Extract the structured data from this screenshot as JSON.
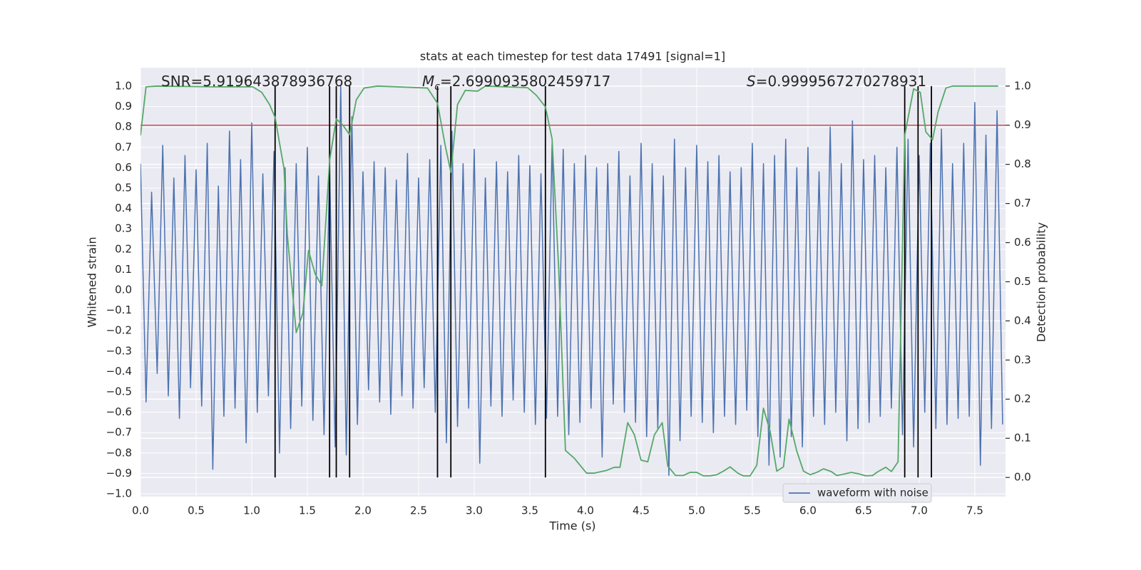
{
  "chart_data": {
    "type": "line",
    "title": "stats at each timestep for test data 17491 [signal=1]",
    "xlabel": "Time (s)",
    "ylabel": "Whitened strain",
    "y2label": "Detection probability",
    "xlim": [
      0,
      7.776
    ],
    "ylim": [
      -1.014,
      1.091
    ],
    "y2lim": [
      -0.049,
      1.047
    ],
    "xticks": [
      {
        "value": 0,
        "label": "0.0"
      },
      {
        "value": 0.5,
        "label": "0.5"
      },
      {
        "value": 1,
        "label": "1.0"
      },
      {
        "value": 1.5,
        "label": "1.5"
      },
      {
        "value": 2,
        "label": "2.0"
      },
      {
        "value": 2.5,
        "label": "2.5"
      },
      {
        "value": 3,
        "label": "3.0"
      },
      {
        "value": 3.5,
        "label": "3.5"
      },
      {
        "value": 4,
        "label": "4.0"
      },
      {
        "value": 4.5,
        "label": "4.5"
      },
      {
        "value": 5,
        "label": "5.0"
      },
      {
        "value": 5.5,
        "label": "5.5"
      },
      {
        "value": 6,
        "label": "6.0"
      },
      {
        "value": 6.5,
        "label": "6.5"
      },
      {
        "value": 7,
        "label": "7.0"
      },
      {
        "value": 7.5,
        "label": "7.5"
      }
    ],
    "yticks": [
      {
        "value": -1,
        "label": "−1.0"
      },
      {
        "value": -0.9,
        "label": "−0.9"
      },
      {
        "value": -0.8,
        "label": "−0.8"
      },
      {
        "value": -0.7,
        "label": "−0.7"
      },
      {
        "value": -0.6,
        "label": "−0.6"
      },
      {
        "value": -0.5,
        "label": "−0.5"
      },
      {
        "value": -0.4,
        "label": "−0.4"
      },
      {
        "value": -0.3,
        "label": "−0.3"
      },
      {
        "value": -0.2,
        "label": "−0.2"
      },
      {
        "value": -0.1,
        "label": "−0.1"
      },
      {
        "value": 0,
        "label": "0.0"
      },
      {
        "value": 0.1,
        "label": "0.1"
      },
      {
        "value": 0.2,
        "label": "0.2"
      },
      {
        "value": 0.3,
        "label": "0.3"
      },
      {
        "value": 0.4,
        "label": "0.4"
      },
      {
        "value": 0.5,
        "label": "0.5"
      },
      {
        "value": 0.6,
        "label": "0.6"
      },
      {
        "value": 0.7,
        "label": "0.7"
      },
      {
        "value": 0.8,
        "label": "0.8"
      },
      {
        "value": 0.9,
        "label": "0.9"
      },
      {
        "value": 1,
        "label": "1.0"
      }
    ],
    "y2ticks": [
      {
        "value": 0,
        "label": "0.0"
      },
      {
        "value": 0.1,
        "label": "0.1"
      },
      {
        "value": 0.2,
        "label": "0.2"
      },
      {
        "value": 0.3,
        "label": "0.3"
      },
      {
        "value": 0.4,
        "label": "0.4"
      },
      {
        "value": 0.5,
        "label": "0.5"
      },
      {
        "value": 0.6,
        "label": "0.6"
      },
      {
        "value": 0.7,
        "label": "0.7"
      },
      {
        "value": 0.8,
        "label": "0.8"
      },
      {
        "value": 0.9,
        "label": "0.9"
      },
      {
        "value": 1,
        "label": "1.0"
      }
    ],
    "grid": true,
    "legend": "lower right",
    "series": [
      {
        "name": "waveform with noise",
        "color": "#4c72b0",
        "x": [
          0.0,
          0.05,
          0.1,
          0.15,
          0.2,
          0.25,
          0.3,
          0.35,
          0.4,
          0.45,
          0.5,
          0.55,
          0.6,
          0.65,
          0.7,
          0.75,
          0.8,
          0.85,
          0.9,
          0.95,
          1.0,
          1.05,
          1.1,
          1.15,
          1.2,
          1.25,
          1.3,
          1.35,
          1.4,
          1.45,
          1.5,
          1.55,
          1.6,
          1.65,
          1.7,
          1.75,
          1.8,
          1.85,
          1.9,
          1.95,
          2.0,
          2.05,
          2.1,
          2.15,
          2.2,
          2.25,
          2.3,
          2.35,
          2.4,
          2.45,
          2.5,
          2.55,
          2.6,
          2.65,
          2.7,
          2.75,
          2.8,
          2.85,
          2.9,
          2.95,
          3.0,
          3.05,
          3.1,
          3.15,
          3.2,
          3.25,
          3.3,
          3.35,
          3.4,
          3.45,
          3.5,
          3.55,
          3.6,
          3.65,
          3.7,
          3.75,
          3.8,
          3.85,
          3.9,
          3.95,
          4.0,
          4.05,
          4.1,
          4.15,
          4.2,
          4.25,
          4.3,
          4.35,
          4.4,
          4.45,
          4.5,
          4.55,
          4.6,
          4.65,
          4.7,
          4.75,
          4.8,
          4.85,
          4.9,
          4.95,
          5.0,
          5.05,
          5.1,
          5.15,
          5.2,
          5.25,
          5.3,
          5.35,
          5.4,
          5.45,
          5.5,
          5.55,
          5.6,
          5.65,
          5.7,
          5.75,
          5.8,
          5.85,
          5.9,
          5.95,
          6.0,
          6.05,
          6.1,
          6.15,
          6.2,
          6.25,
          6.3,
          6.35,
          6.4,
          6.45,
          6.5,
          6.55,
          6.6,
          6.65,
          6.7,
          6.75,
          6.8,
          6.85,
          6.9,
          6.95,
          7.0,
          7.05,
          7.1,
          7.15,
          7.2,
          7.25,
          7.3,
          7.35,
          7.4,
          7.45,
          7.5,
          7.55,
          7.6,
          7.65,
          7.7,
          7.75
        ],
        "values": [
          0.62,
          -0.55,
          0.48,
          -0.41,
          0.71,
          -0.52,
          0.55,
          -0.63,
          0.66,
          -0.48,
          0.59,
          -0.57,
          0.72,
          -0.88,
          0.51,
          -0.62,
          0.78,
          -0.58,
          0.64,
          -0.75,
          0.82,
          -0.6,
          0.57,
          -0.52,
          0.68,
          -0.8,
          0.6,
          -0.68,
          0.62,
          -0.57,
          0.7,
          -0.64,
          0.56,
          -0.71,
          0.6,
          -0.77,
          1.0,
          -0.81,
          0.85,
          -0.66,
          0.58,
          -0.49,
          0.63,
          -0.55,
          0.6,
          -0.61,
          0.54,
          -0.52,
          0.67,
          -0.58,
          0.55,
          -0.48,
          0.64,
          -0.6,
          0.71,
          -0.75,
          0.78,
          -0.67,
          0.62,
          -0.58,
          0.69,
          -0.85,
          0.55,
          -0.57,
          0.63,
          -0.62,
          0.58,
          -0.54,
          0.66,
          -0.6,
          0.61,
          -0.66,
          0.57,
          -0.63,
          0.72,
          -0.62,
          0.69,
          -0.71,
          0.62,
          -0.65,
          0.66,
          -0.58,
          0.6,
          -0.82,
          0.62,
          -0.56,
          0.68,
          -0.6,
          0.56,
          -0.65,
          0.72,
          -0.72,
          0.62,
          -0.68,
          0.56,
          -0.91,
          0.74,
          -0.74,
          0.6,
          -0.62,
          0.71,
          -0.65,
          0.63,
          -0.7,
          0.66,
          -0.62,
          0.58,
          -0.66,
          0.6,
          -0.59,
          0.72,
          -0.72,
          0.62,
          -0.86,
          0.66,
          -0.82,
          0.74,
          -0.72,
          0.6,
          -0.77,
          0.7,
          -0.62,
          0.58,
          -0.66,
          0.8,
          -0.6,
          0.62,
          -0.74,
          0.83,
          -0.68,
          0.64,
          -0.65,
          0.66,
          -0.62,
          0.6,
          -0.58,
          0.7,
          -0.71,
          0.74,
          -0.77,
          0.66,
          -0.6,
          0.72,
          -0.68,
          0.79,
          -0.66,
          0.62,
          -0.63,
          0.72,
          -0.62,
          0.92,
          -0.86,
          0.76,
          -0.68,
          0.88,
          -0.66
        ]
      },
      {
        "color": "#55a868",
        "axis": "y2",
        "x": [
          0.0,
          0.05,
          0.15,
          0.66,
          1.01,
          1.09,
          1.16,
          1.21,
          1.26,
          1.29,
          1.32,
          1.4,
          1.46,
          1.51,
          1.57,
          1.63,
          1.7,
          1.76,
          1.82,
          1.88,
          1.94,
          2.01,
          2.13,
          2.58,
          2.67,
          2.74,
          2.79,
          2.85,
          2.92,
          3.03,
          3.1,
          3.48,
          3.56,
          3.64,
          3.7,
          3.76,
          3.82,
          3.9,
          4.01,
          4.08,
          4.19,
          4.26,
          4.31,
          4.38,
          4.44,
          4.5,
          4.56,
          4.62,
          4.69,
          4.74,
          4.81,
          4.88,
          4.94,
          5.0,
          5.06,
          5.12,
          5.18,
          5.24,
          5.3,
          5.37,
          5.42,
          5.48,
          5.54,
          5.6,
          5.66,
          5.72,
          5.78,
          5.83,
          5.9,
          5.96,
          6.02,
          6.08,
          6.14,
          6.21,
          6.26,
          6.33,
          6.39,
          6.46,
          6.52,
          6.58,
          6.63,
          6.7,
          6.75,
          6.81,
          6.87,
          6.95,
          7.01,
          7.06,
          7.12,
          7.17,
          7.24,
          7.3,
          7.71
        ],
        "values": [
          0.874,
          0.998,
          1.0,
          0.998,
          0.998,
          0.984,
          0.953,
          0.92,
          0.838,
          0.79,
          0.62,
          0.37,
          0.42,
          0.58,
          0.52,
          0.49,
          0.81,
          0.916,
          0.9,
          0.876,
          0.965,
          0.995,
          1.0,
          0.995,
          0.956,
          0.847,
          0.78,
          0.953,
          0.989,
          0.987,
          1.0,
          0.996,
          0.976,
          0.947,
          0.865,
          0.53,
          0.069,
          0.049,
          0.011,
          0.011,
          0.018,
          0.026,
          0.026,
          0.14,
          0.109,
          0.044,
          0.04,
          0.109,
          0.14,
          0.029,
          0.005,
          0.005,
          0.013,
          0.013,
          0.004,
          0.004,
          0.007,
          0.016,
          0.027,
          0.011,
          0.004,
          0.004,
          0.031,
          0.177,
          0.118,
          0.016,
          0.027,
          0.149,
          0.067,
          0.016,
          0.007,
          0.013,
          0.022,
          0.015,
          0.005,
          0.009,
          0.013,
          0.009,
          0.004,
          0.005,
          0.015,
          0.026,
          0.015,
          0.04,
          0.874,
          0.993,
          0.984,
          0.883,
          0.863,
          0.934,
          0.995,
          1.0,
          1.0
        ]
      }
    ],
    "threshold": {
      "value": 0.9,
      "axis": "y2",
      "color": "#c44e52"
    },
    "vlines": {
      "x": [
        1.21,
        1.7,
        1.76,
        1.88,
        2.67,
        2.79,
        3.64,
        6.87,
        6.99,
        7.11
      ],
      "span": [
        0,
        1
      ],
      "axis": "y2",
      "color": "#000000"
    },
    "annotations": [
      {
        "text": "SNR=5.919643878936768"
      },
      {
        "symbol": "M",
        "subscript": "c",
        "text": "=2.6990935802459717"
      },
      {
        "symbol": "S",
        "text": "=0.9999567270278931"
      }
    ]
  }
}
